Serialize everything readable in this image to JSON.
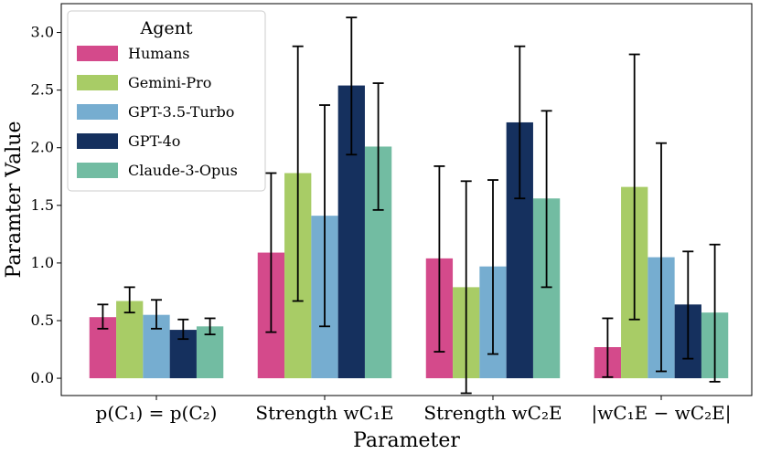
{
  "chart_data": {
    "type": "bar",
    "title": "",
    "xlabel": "Parameter",
    "ylabel": "Paramter Value",
    "ylim": [
      -0.15,
      3.25
    ],
    "yticks": [
      "0.0",
      "0.5",
      "1.0",
      "1.5",
      "2.0",
      "2.5",
      "3.0"
    ],
    "ytick_values": [
      0,
      0.5,
      1.0,
      1.5,
      2.0,
      2.5,
      3.0
    ],
    "categories": [
      "p(C₁) = p(C₂)",
      "Strength wC₁E",
      "Strength wC₂E",
      "|wC₁E − wC₂E|"
    ],
    "legend": {
      "title": "Agent",
      "position": "top-left"
    },
    "series": [
      {
        "name": "Humans",
        "color": "#d44a8b",
        "values": [
          0.53,
          1.09,
          1.04,
          0.27
        ],
        "err_low": [
          0.43,
          0.4,
          0.23,
          0.01
        ],
        "err_high": [
          0.64,
          1.78,
          1.84,
          0.52
        ]
      },
      {
        "name": "Gemini-Pro",
        "color": "#a8cc66",
        "values": [
          0.67,
          1.78,
          0.79,
          1.66
        ],
        "err_low": [
          0.57,
          0.67,
          -0.13,
          0.51
        ],
        "err_high": [
          0.79,
          2.88,
          1.71,
          2.81
        ]
      },
      {
        "name": "GPT-3.5-Turbo",
        "color": "#76add0",
        "values": [
          0.55,
          1.41,
          0.97,
          1.05
        ],
        "err_low": [
          0.43,
          0.45,
          0.21,
          0.06
        ],
        "err_high": [
          0.68,
          2.37,
          1.72,
          2.04
        ]
      },
      {
        "name": "GPT-4o",
        "color": "#15305e",
        "values": [
          0.42,
          2.54,
          2.22,
          0.64
        ],
        "err_low": [
          0.34,
          1.94,
          1.56,
          0.17
        ],
        "err_high": [
          0.51,
          3.13,
          2.88,
          1.1
        ]
      },
      {
        "name": "Claude-3-Opus",
        "color": "#72bca2",
        "values": [
          0.45,
          2.01,
          1.56,
          0.57
        ],
        "err_low": [
          0.38,
          1.46,
          0.79,
          -0.03
        ],
        "err_high": [
          0.52,
          2.56,
          2.32,
          1.16
        ]
      }
    ]
  }
}
